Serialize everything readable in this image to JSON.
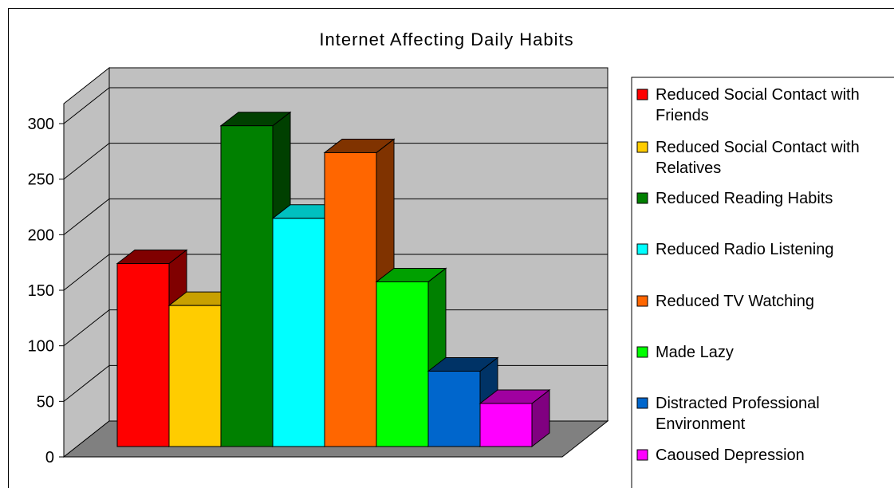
{
  "chart_data": {
    "type": "bar",
    "title": "Internet Affecting Daily Habits",
    "xlabel": "",
    "ylabel": "",
    "ylim": [
      0,
      300
    ],
    "yticks": [
      0,
      50,
      100,
      150,
      200,
      250,
      300
    ],
    "grid": true,
    "three_d": true,
    "legend_position": "right",
    "categories": [
      "Reduced Social Contact with Friends",
      "Reduced Social Contact with Relatives",
      "Reduced Reading Habits",
      "Reduced Radio Listening",
      "Reduced TV Watching",
      "Made Lazy",
      "Distracted Professional Environment",
      "Caoused Depression"
    ],
    "legend_lines": [
      [
        "Reduced Social Contact with",
        "Friends"
      ],
      [
        "Reduced Social Contact with",
        "Relatives"
      ],
      [
        "Reduced Reading Habits"
      ],
      [
        "Reduced Radio Listening"
      ],
      [
        "Reduced TV Watching"
      ],
      [
        "Made Lazy"
      ],
      [
        "Distracted Professional",
        "Environment"
      ],
      [
        "Caoused Depression"
      ]
    ],
    "values": [
      170,
      131,
      298,
      212,
      273,
      153,
      70,
      40
    ],
    "colors": [
      "#ff0000",
      "#ffcc00",
      "#008000",
      "#00ffff",
      "#ff6600",
      "#00ff00",
      "#0066cc",
      "#ff00ff"
    ],
    "colors_dark": [
      "#800000",
      "#c8a000",
      "#004000",
      "#00c0c0",
      "#803300",
      "#00a000",
      "#003366",
      "#a000a0"
    ],
    "colors_side": [
      "#800000",
      "#a08000",
      "#004000",
      "#009090",
      "#803300",
      "#008000",
      "#003366",
      "#800080"
    ],
    "wall_color": "#c0c0c0",
    "floor_color": "#808080"
  }
}
